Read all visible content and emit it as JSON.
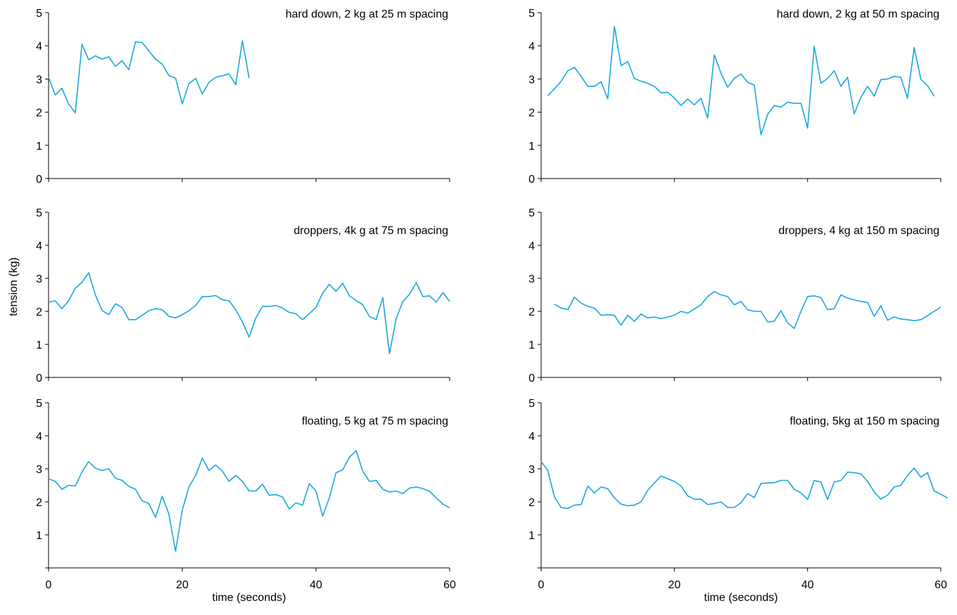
{
  "colors": {
    "line": "#1aa7df",
    "axis": "#000000",
    "background": "#ffffff"
  },
  "chart_data": [
    {
      "type": "line",
      "title": "hard down, 2 kg at 25 m spacing",
      "ylabel": "",
      "xlabel": "",
      "ylim": [
        0,
        5
      ],
      "xlim": [
        0,
        60
      ],
      "yticks": [
        "0",
        "1",
        "2",
        "3",
        "4",
        "5"
      ],
      "xticks": [],
      "grid": false,
      "x": [
        0,
        1,
        2,
        3,
        4,
        5,
        6,
        7,
        8,
        9,
        10,
        11,
        12,
        13,
        14,
        15,
        16,
        17,
        18,
        19,
        20,
        21,
        22,
        23,
        24,
        25,
        26,
        27,
        28,
        29,
        30
      ],
      "values": [
        3.05,
        2.52,
        2.72,
        2.25,
        1.98,
        4.05,
        3.58,
        3.7,
        3.6,
        3.67,
        3.38,
        3.55,
        3.28,
        4.12,
        4.1,
        3.85,
        3.6,
        3.45,
        3.1,
        3.03,
        2.25,
        2.86,
        3.02,
        2.55,
        2.9,
        3.05,
        3.1,
        3.15,
        2.83,
        4.15,
        3.03
      ]
    },
    {
      "type": "line",
      "title": "hard down, 2 kg at 50 m spacing",
      "ylabel": "",
      "xlabel": "",
      "ylim": [
        0,
        5
      ],
      "xlim": [
        0,
        60
      ],
      "yticks": [
        "0",
        "1",
        "2",
        "3",
        "4",
        "5"
      ],
      "xticks": [],
      "grid": false,
      "x": [
        1,
        2,
        3,
        4,
        5,
        6,
        7,
        8,
        9,
        10,
        11,
        12,
        13,
        14,
        15,
        16,
        17,
        18,
        19,
        20,
        21,
        22,
        23,
        24,
        25,
        26,
        27,
        28,
        29,
        30,
        31,
        32,
        33,
        34,
        35,
        36,
        37,
        38,
        39,
        40,
        41,
        42,
        43,
        44,
        45,
        46,
        47,
        48,
        49,
        50,
        51,
        52,
        53,
        54,
        55,
        56,
        57,
        58,
        59
      ],
      "values": [
        2.5,
        2.7,
        2.93,
        3.25,
        3.35,
        3.08,
        2.78,
        2.78,
        2.92,
        2.4,
        4.58,
        3.4,
        3.53,
        3.02,
        2.93,
        2.87,
        2.78,
        2.58,
        2.6,
        2.43,
        2.2,
        2.4,
        2.22,
        2.42,
        1.82,
        3.73,
        3.17,
        2.75,
        3.02,
        3.15,
        2.9,
        2.82,
        1.32,
        1.93,
        2.2,
        2.15,
        2.3,
        2.27,
        2.27,
        1.52,
        3.98,
        2.87,
        3.02,
        3.25,
        2.78,
        3.05,
        1.95,
        2.45,
        2.78,
        2.48,
        2.98,
        3.0,
        3.08,
        3.05,
        2.42,
        3.95,
        3.0,
        2.8,
        2.48
      ]
    },
    {
      "type": "line",
      "title": "droppers, 4k g at 75 m spacing",
      "ylabel": "",
      "xlabel": "",
      "ylim": [
        0,
        5
      ],
      "xlim": [
        0,
        60
      ],
      "yticks": [
        "0",
        "1",
        "2",
        "3",
        "4",
        "5"
      ],
      "xticks": [],
      "grid": false,
      "x": [
        0,
        1,
        2,
        3,
        4,
        5,
        6,
        7,
        8,
        9,
        10,
        11,
        12,
        13,
        14,
        15,
        16,
        17,
        18,
        19,
        20,
        21,
        22,
        23,
        24,
        25,
        26,
        27,
        28,
        29,
        30,
        31,
        32,
        33,
        34,
        35,
        36,
        37,
        38,
        39,
        40,
        41,
        42,
        43,
        44,
        45,
        46,
        47,
        48,
        49,
        50,
        51,
        52,
        53,
        54,
        55,
        56,
        57,
        58,
        59,
        60
      ],
      "values": [
        2.28,
        2.32,
        2.08,
        2.32,
        2.7,
        2.88,
        3.17,
        2.5,
        2.03,
        1.9,
        2.23,
        2.12,
        1.75,
        1.75,
        1.88,
        2.02,
        2.08,
        2.05,
        1.85,
        1.8,
        1.9,
        2.02,
        2.18,
        2.45,
        2.45,
        2.48,
        2.35,
        2.32,
        2.05,
        1.68,
        1.22,
        1.8,
        2.15,
        2.15,
        2.18,
        2.1,
        1.97,
        1.93,
        1.75,
        1.93,
        2.12,
        2.55,
        2.82,
        2.6,
        2.85,
        2.47,
        2.33,
        2.2,
        1.85,
        1.75,
        2.42,
        0.72,
        1.78,
        2.3,
        2.52,
        2.87,
        2.45,
        2.47,
        2.28,
        2.57,
        2.3
      ]
    },
    {
      "type": "line",
      "title": "droppers, 4 kg at 150 m spacing",
      "ylabel": "",
      "xlabel": "",
      "ylim": [
        0,
        5
      ],
      "xlim": [
        0,
        60
      ],
      "yticks": [
        "0",
        "1",
        "2",
        "3",
        "4",
        "5"
      ],
      "xticks": [],
      "grid": false,
      "x": [
        2,
        3,
        4,
        5,
        6,
        7,
        8,
        9,
        10,
        11,
        12,
        13,
        14,
        15,
        16,
        17,
        18,
        19,
        20,
        21,
        22,
        23,
        24,
        25,
        26,
        27,
        28,
        29,
        30,
        31,
        32,
        33,
        34,
        35,
        36,
        37,
        38,
        39,
        40,
        41,
        42,
        43,
        44,
        45,
        46,
        47,
        48,
        49,
        50,
        51,
        52,
        53,
        54,
        55,
        56,
        57,
        58,
        59,
        60
      ],
      "values": [
        2.22,
        2.1,
        2.05,
        2.43,
        2.25,
        2.15,
        2.1,
        1.88,
        1.9,
        1.88,
        1.58,
        1.88,
        1.7,
        1.92,
        1.8,
        1.83,
        1.78,
        1.83,
        1.88,
        2.0,
        1.95,
        2.07,
        2.2,
        2.45,
        2.6,
        2.5,
        2.45,
        2.2,
        2.3,
        2.05,
        2.0,
        2.0,
        1.68,
        1.7,
        2.02,
        1.65,
        1.48,
        2.0,
        2.45,
        2.47,
        2.42,
        2.05,
        2.08,
        2.5,
        2.4,
        2.35,
        2.3,
        2.27,
        1.85,
        2.17,
        1.73,
        1.83,
        1.77,
        1.75,
        1.72,
        1.75,
        1.87,
        2.0,
        2.13
      ]
    },
    {
      "type": "line",
      "title": "floating, 5 kg at 75 m spacing",
      "ylabel": "",
      "xlabel": "time (seconds)",
      "ylim": [
        0,
        5
      ],
      "xlim": [
        0,
        60
      ],
      "yticks": [
        "",
        "1",
        "2",
        "3",
        "4",
        "5"
      ],
      "xticks": [
        "0",
        "20",
        "40",
        "60"
      ],
      "grid": false,
      "x": [
        0,
        1,
        2,
        3,
        4,
        5,
        6,
        7,
        8,
        9,
        10,
        11,
        12,
        13,
        14,
        15,
        16,
        17,
        18,
        19,
        20,
        21,
        22,
        23,
        24,
        25,
        26,
        27,
        28,
        29,
        30,
        31,
        32,
        33,
        34,
        35,
        36,
        37,
        38,
        39,
        40,
        41,
        42,
        43,
        44,
        45,
        46,
        47,
        48,
        49,
        50,
        51,
        52,
        53,
        54,
        55,
        56,
        57,
        58,
        59,
        60
      ],
      "values": [
        2.7,
        2.62,
        2.38,
        2.5,
        2.48,
        2.9,
        3.22,
        3.02,
        2.95,
        3.0,
        2.72,
        2.65,
        2.47,
        2.38,
        2.03,
        1.95,
        1.53,
        2.17,
        1.63,
        0.5,
        1.75,
        2.45,
        2.8,
        3.32,
        2.95,
        3.12,
        2.93,
        2.62,
        2.8,
        2.62,
        2.33,
        2.33,
        2.53,
        2.2,
        2.22,
        2.15,
        1.78,
        1.97,
        1.9,
        2.55,
        2.33,
        1.57,
        2.12,
        2.88,
        2.97,
        3.35,
        3.55,
        2.93,
        2.62,
        2.65,
        2.38,
        2.3,
        2.33,
        2.25,
        2.42,
        2.45,
        2.4,
        2.32,
        2.12,
        1.93,
        1.82
      ]
    },
    {
      "type": "line",
      "title": "floating, 5kg at 150 m spacing",
      "ylabel": "",
      "xlabel": "time (seconds)",
      "ylim": [
        0,
        5
      ],
      "xlim": [
        0,
        60
      ],
      "yticks": [
        "",
        "1",
        "2",
        "3",
        "4",
        "5"
      ],
      "xticks": [
        "0",
        "20",
        "40",
        "60"
      ],
      "grid": false,
      "x": [
        0,
        1,
        2,
        3,
        4,
        5,
        6,
        7,
        8,
        9,
        10,
        11,
        12,
        13,
        14,
        15,
        16,
        17,
        18,
        19,
        20,
        21,
        22,
        23,
        24,
        25,
        26,
        27,
        28,
        29,
        30,
        31,
        32,
        33,
        34,
        35,
        36,
        37,
        38,
        39,
        40,
        41,
        42,
        43,
        44,
        45,
        46,
        47,
        48,
        49,
        50,
        51,
        52,
        53,
        54,
        55,
        56,
        57,
        58,
        59,
        60,
        61
      ],
      "values": [
        3.22,
        2.95,
        2.15,
        1.83,
        1.8,
        1.9,
        1.92,
        2.48,
        2.27,
        2.45,
        2.4,
        2.12,
        1.93,
        1.88,
        1.9,
        2.0,
        2.35,
        2.57,
        2.78,
        2.7,
        2.62,
        2.48,
        2.18,
        2.08,
        2.08,
        1.92,
        1.95,
        2.0,
        1.83,
        1.83,
        1.97,
        2.25,
        2.13,
        2.55,
        2.57,
        2.58,
        2.65,
        2.65,
        2.38,
        2.27,
        2.07,
        2.65,
        2.6,
        2.07,
        2.6,
        2.65,
        2.9,
        2.88,
        2.85,
        2.62,
        2.3,
        2.08,
        2.2,
        2.45,
        2.5,
        2.8,
        3.02,
        2.75,
        2.88,
        2.33,
        2.23,
        2.12
      ]
    }
  ],
  "shared": {
    "ylabel": "tension (kg)"
  }
}
